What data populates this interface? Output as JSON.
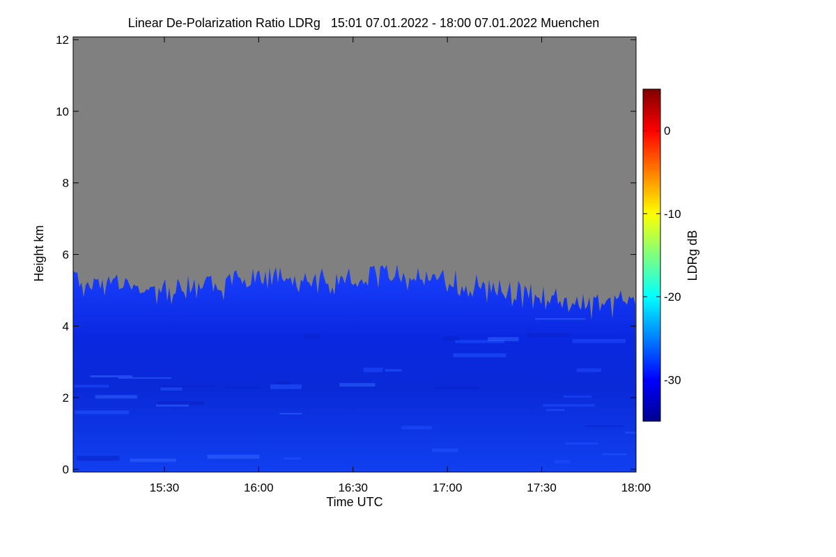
{
  "chart_data": {
    "type": "heatmap",
    "title": "Linear De-Polarization Ratio LDRg   15:01 07.01.2022 - 18:00 07.01.2022 Muenchen",
    "xlabel": "Time UTC",
    "ylabel": "Height km",
    "colorbar_label": "LDRg dB",
    "x_range": [
      "15:01",
      "18:00"
    ],
    "ylim": [
      0,
      12
    ],
    "clim": [
      -35,
      5
    ],
    "x_ticks": [
      "15:30",
      "16:00",
      "16:30",
      "17:00",
      "17:30",
      "18:00"
    ],
    "y_ticks": [
      "0",
      "2",
      "4",
      "6",
      "8",
      "10",
      "12"
    ],
    "colorbar_ticks": [
      "0",
      "-10",
      "-20",
      "-30"
    ],
    "no_signal_color": "#808080",
    "colormap": [
      "#00008f",
      "#0000ff",
      "#00ffff",
      "#ffff00",
      "#ff7f00",
      "#ff0000",
      "#7f0000"
    ],
    "signal_top_km": [
      {
        "time": "15:01",
        "height": 5.3
      },
      {
        "time": "15:15",
        "height": 5.2
      },
      {
        "time": "15:30",
        "height": 5.1
      },
      {
        "time": "15:45",
        "height": 5.2
      },
      {
        "time": "16:00",
        "height": 5.4
      },
      {
        "time": "16:15",
        "height": 5.4
      },
      {
        "time": "16:30",
        "height": 5.4
      },
      {
        "time": "16:45",
        "height": 5.5
      },
      {
        "time": "17:00",
        "height": 5.4
      },
      {
        "time": "17:15",
        "height": 5.1
      },
      {
        "time": "17:30",
        "height": 4.9
      },
      {
        "time": "17:45",
        "height": 4.6
      },
      {
        "time": "18:00",
        "height": 4.8
      }
    ],
    "typical_ldr_db": -31
  }
}
